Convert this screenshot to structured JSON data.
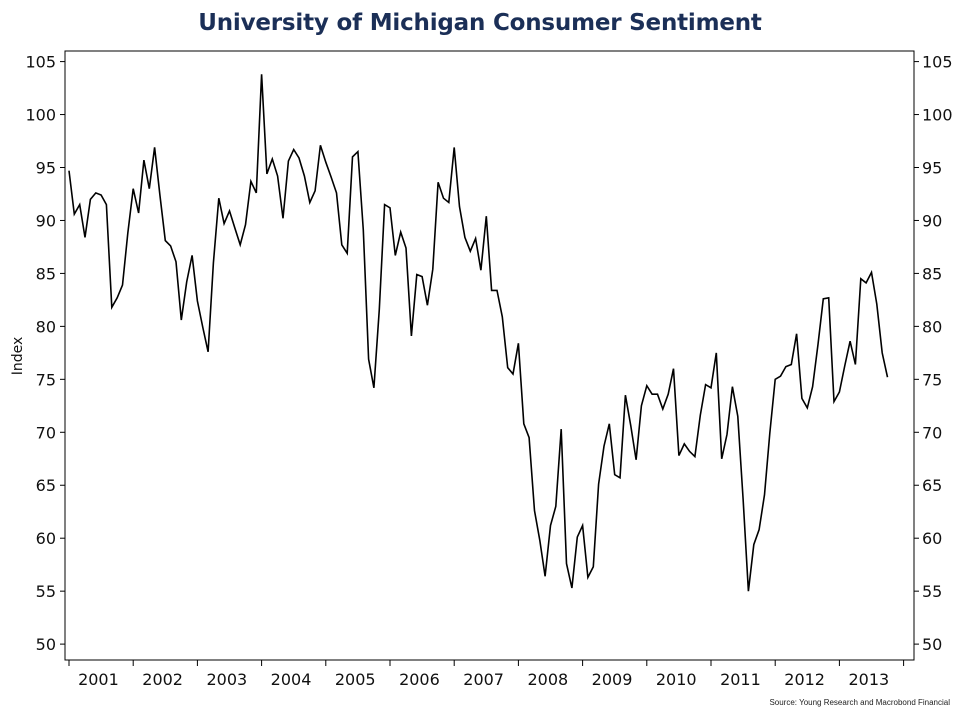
{
  "chart_data": {
    "type": "line",
    "title": "University of Michigan Consumer Sentiment",
    "ylabel": "Index",
    "xlabel": "",
    "source": "Source: Young Research and Macrobond Financial",
    "ylim": [
      48.5,
      106
    ],
    "yticks": [
      50,
      55,
      60,
      65,
      70,
      75,
      80,
      85,
      90,
      95,
      100,
      105
    ],
    "right_axis": true,
    "grid": false,
    "legend": "none",
    "line_color": "#000000",
    "x_start": "2001-01",
    "x_end": "2013-05",
    "x_ticks": [
      "2001",
      "2002",
      "2003",
      "2004",
      "2005",
      "2006",
      "2007",
      "2008",
      "2009",
      "2010",
      "2011",
      "2012",
      "2013"
    ],
    "series": [
      {
        "values": [
          94.7,
          90.6,
          91.5,
          88.4,
          92.0,
          92.6,
          92.4,
          91.5,
          81.8,
          82.7,
          83.9,
          88.8,
          93.0,
          90.7,
          95.7,
          93.0,
          96.9,
          92.4,
          88.1,
          87.6,
          86.1,
          80.6,
          84.2,
          86.7,
          82.4,
          79.9,
          77.6,
          86.0,
          92.1,
          89.7,
          90.9,
          89.3,
          87.7,
          89.6,
          93.7,
          92.6,
          103.8,
          94.4,
          95.8,
          94.2,
          90.2,
          95.6,
          96.7,
          95.9,
          94.2,
          91.7,
          92.8,
          97.1,
          95.5,
          94.1,
          92.6,
          87.7,
          86.9,
          96.0,
          96.5,
          89.1,
          76.9,
          74.2,
          81.6,
          91.5,
          91.2,
          86.7,
          88.9,
          87.4,
          79.1,
          84.9,
          84.7,
          82.0,
          85.4,
          93.6,
          92.1,
          91.7,
          96.9,
          91.3,
          88.4,
          87.1,
          88.3,
          85.3,
          90.4,
          83.4,
          83.4,
          80.9,
          76.1,
          75.5,
          78.4,
          70.8,
          69.5,
          62.6,
          59.8,
          56.4,
          61.2,
          63.0,
          70.3,
          57.6,
          55.3,
          60.1,
          61.2,
          56.3,
          57.3,
          65.1,
          68.7,
          70.8,
          66.0,
          65.7,
          73.5,
          70.6,
          67.4,
          72.5,
          74.4,
          73.6,
          73.6,
          72.2,
          73.6,
          76.0,
          67.8,
          68.9,
          68.2,
          67.7,
          71.6,
          74.5,
          74.2,
          77.5,
          67.5,
          69.8,
          74.3,
          71.5,
          63.7,
          55.0,
          59.4,
          60.8,
          64.1,
          69.9,
          75.0,
          75.3,
          76.2,
          76.4,
          79.3,
          73.2,
          72.3,
          74.3,
          78.3,
          82.6,
          82.7,
          72.9,
          73.8,
          76.3,
          78.6,
          76.4,
          84.5,
          84.1,
          85.1,
          82.1,
          77.5,
          75.2
        ]
      }
    ]
  }
}
